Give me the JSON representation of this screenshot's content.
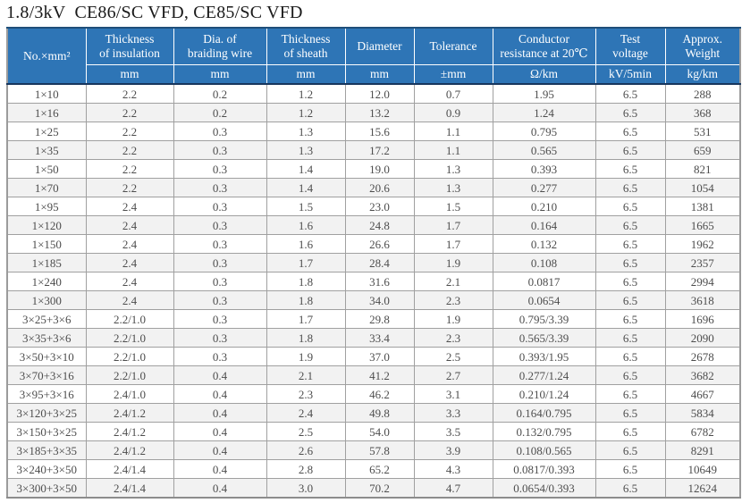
{
  "title": "1.8/3kV  CE86/SC VFD, CE85/SC VFD",
  "colors": {
    "header_bg": "#2e75b6",
    "header_text": "#ffffff",
    "outer_top_border": "#1f4e79",
    "row_alt_bg": "#f2f2f2",
    "cell_border": "#a0a0a0",
    "data_text": "#4d4d4d"
  },
  "table": {
    "columns": [
      {
        "label": "No.×mm²",
        "unit": ""
      },
      {
        "label": "Thickness\nof insulation",
        "unit": "mm"
      },
      {
        "label": "Dia. of\nbraiding wire",
        "unit": "mm"
      },
      {
        "label": "Thickness\nof sheath",
        "unit": "mm"
      },
      {
        "label": "Diameter",
        "unit": "mm"
      },
      {
        "label": "Tolerance",
        "unit": "±mm"
      },
      {
        "label": "Conductor\nresistance at 20℃",
        "unit": "Ω/km"
      },
      {
        "label": "Test\nvoltage",
        "unit": "kV/5min"
      },
      {
        "label": "Approx.\nWeight",
        "unit": "kg/km"
      }
    ],
    "rows": [
      [
        "1×10",
        "2.2",
        "0.2",
        "1.2",
        "12.0",
        "0.7",
        "1.95",
        "6.5",
        "288"
      ],
      [
        "1×16",
        "2.2",
        "0.2",
        "1.2",
        "13.2",
        "0.9",
        "1.24",
        "6.5",
        "368"
      ],
      [
        "1×25",
        "2.2",
        "0.3",
        "1.3",
        "15.6",
        "1.1",
        "0.795",
        "6.5",
        "531"
      ],
      [
        "1×35",
        "2.2",
        "0.3",
        "1.3",
        "17.2",
        "1.1",
        "0.565",
        "6.5",
        "659"
      ],
      [
        "1×50",
        "2.2",
        "0.3",
        "1.4",
        "19.0",
        "1.3",
        "0.393",
        "6.5",
        "821"
      ],
      [
        "1×70",
        "2.2",
        "0.3",
        "1.4",
        "20.6",
        "1.3",
        "0.277",
        "6.5",
        "1054"
      ],
      [
        "1×95",
        "2.4",
        "0.3",
        "1.5",
        "23.0",
        "1.5",
        "0.210",
        "6.5",
        "1381"
      ],
      [
        "1×120",
        "2.4",
        "0.3",
        "1.6",
        "24.8",
        "1.7",
        "0.164",
        "6.5",
        "1665"
      ],
      [
        "1×150",
        "2.4",
        "0.3",
        "1.6",
        "26.6",
        "1.7",
        "0.132",
        "6.5",
        "1962"
      ],
      [
        "1×185",
        "2.4",
        "0.3",
        "1.7",
        "28.4",
        "1.9",
        "0.108",
        "6.5",
        "2357"
      ],
      [
        "1×240",
        "2.4",
        "0.3",
        "1.8",
        "31.6",
        "2.1",
        "0.0817",
        "6.5",
        "2994"
      ],
      [
        "1×300",
        "2.4",
        "0.3",
        "1.8",
        "34.0",
        "2.3",
        "0.0654",
        "6.5",
        "3618"
      ],
      [
        "3×25+3×6",
        "2.2/1.0",
        "0.3",
        "1.7",
        "29.8",
        "1.9",
        "0.795/3.39",
        "6.5",
        "1696"
      ],
      [
        "3×35+3×6",
        "2.2/1.0",
        "0.3",
        "1.8",
        "33.4",
        "2.3",
        "0.565/3.39",
        "6.5",
        "2090"
      ],
      [
        "3×50+3×10",
        "2.2/1.0",
        "0.3",
        "1.9",
        "37.0",
        "2.5",
        "0.393/1.95",
        "6.5",
        "2678"
      ],
      [
        "3×70+3×16",
        "2.2/1.0",
        "0.4",
        "2.1",
        "41.2",
        "2.7",
        "0.277/1.24",
        "6.5",
        "3682"
      ],
      [
        "3×95+3×16",
        "2.4/1.0",
        "0.4",
        "2.3",
        "46.2",
        "3.1",
        "0.210/1.24",
        "6.5",
        "4667"
      ],
      [
        "3×120+3×25",
        "2.4/1.2",
        "0.4",
        "2.4",
        "49.8",
        "3.3",
        "0.164/0.795",
        "6.5",
        "5834"
      ],
      [
        "3×150+3×25",
        "2.4/1.2",
        "0.4",
        "2.5",
        "54.0",
        "3.5",
        "0.132/0.795",
        "6.5",
        "6782"
      ],
      [
        "3×185+3×35",
        "2.4/1.2",
        "0.4",
        "2.6",
        "57.8",
        "3.9",
        "0.108/0.565",
        "6.5",
        "8291"
      ],
      [
        "3×240+3×50",
        "2.4/1.4",
        "0.4",
        "2.8",
        "65.2",
        "4.3",
        "0.0817/0.393",
        "6.5",
        "10649"
      ],
      [
        "3×300+3×50",
        "2.4/1.4",
        "0.4",
        "3.0",
        "70.2",
        "4.7",
        "0.0654/0.393",
        "6.5",
        "12624"
      ]
    ]
  }
}
